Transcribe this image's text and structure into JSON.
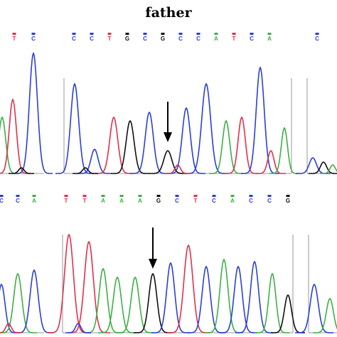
{
  "title": "father",
  "panels": [
    {
      "bases": [
        "T",
        "C"
      ]
    },
    {
      "bases": [
        "C",
        "C",
        "T",
        "G",
        "C",
        "G",
        "C",
        "C",
        "A",
        "T",
        "C",
        "A"
      ]
    },
    {
      "bases": [
        "C"
      ]
    },
    {
      "bases": [
        "C",
        "C",
        "A"
      ]
    },
    {
      "bases": [
        "T",
        "T",
        "A",
        "A",
        "A",
        "G",
        "C",
        "T",
        "C",
        "A",
        "C",
        "C",
        "G"
      ]
    }
  ]
}
